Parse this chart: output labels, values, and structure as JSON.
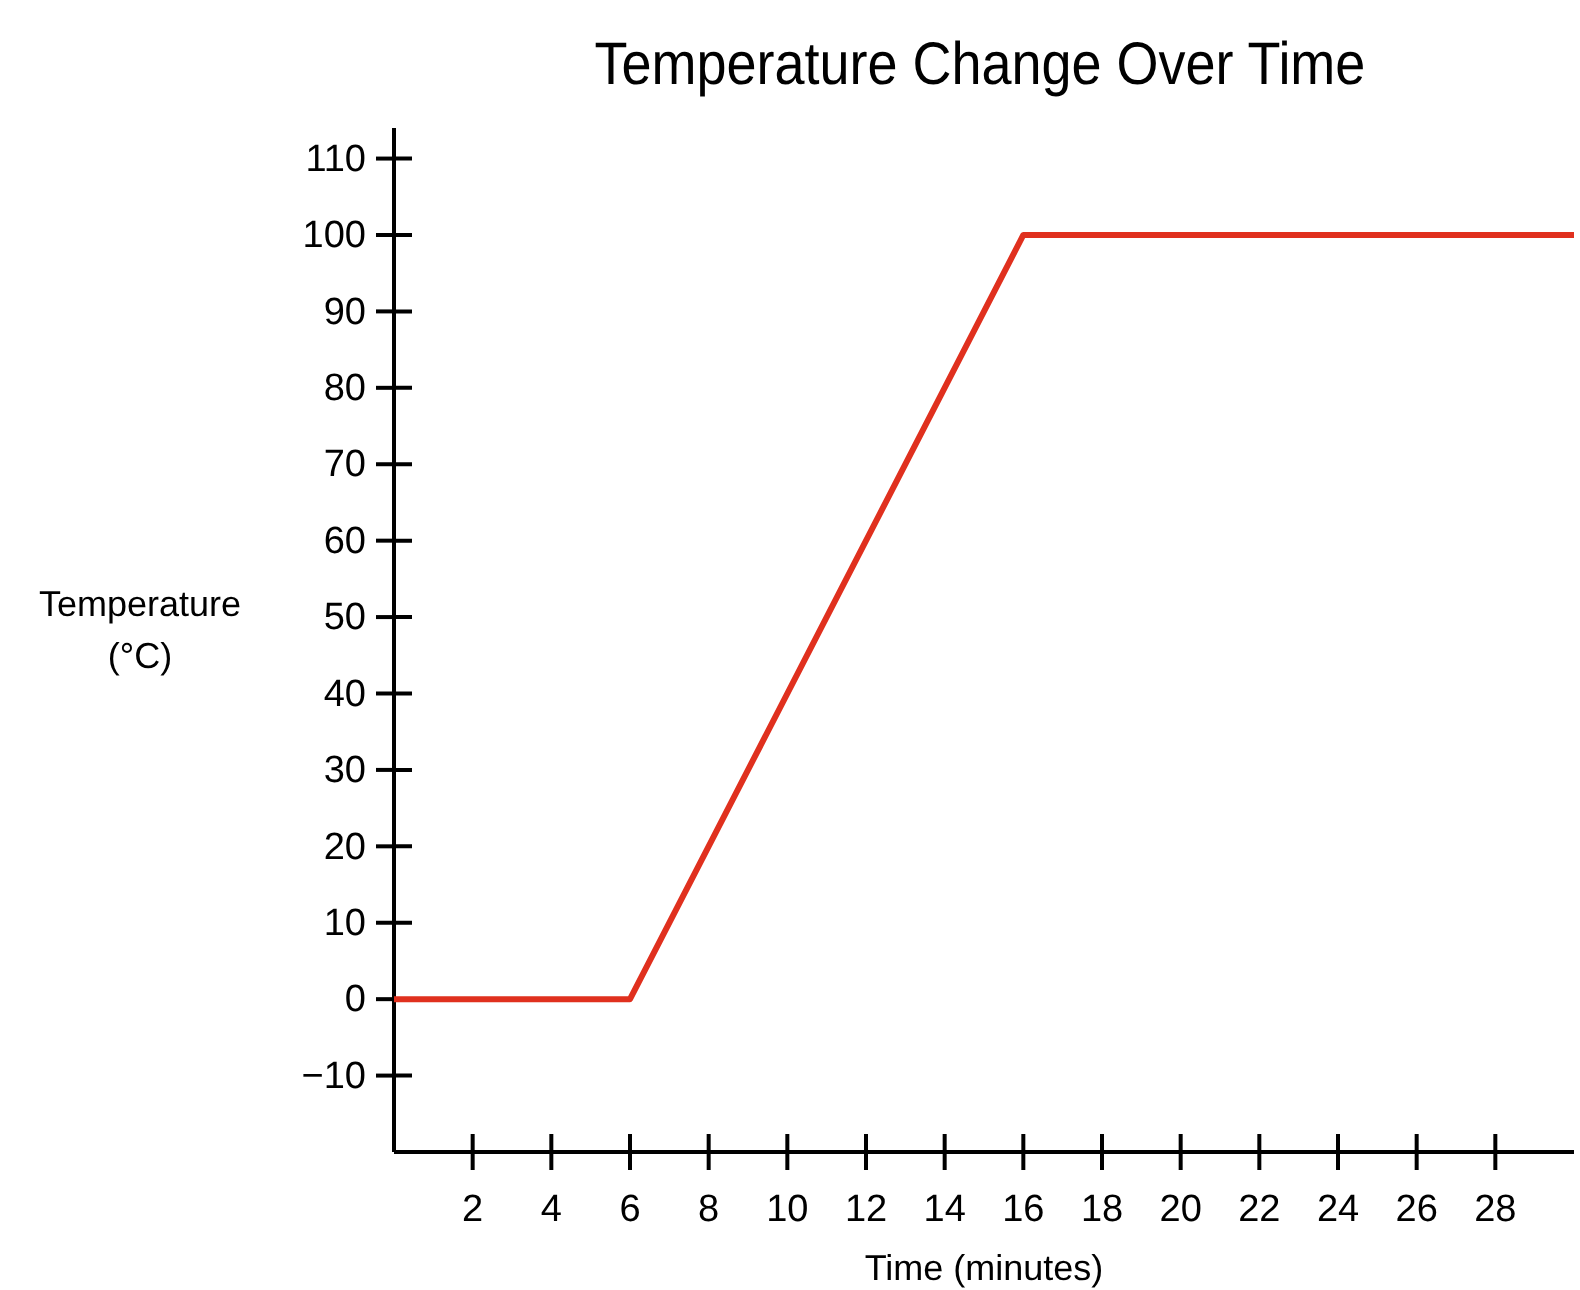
{
  "chart_data": {
    "type": "line",
    "title": "Temperature Change Over Time",
    "xlabel": "Time (minutes)",
    "ylabel": "Temperature\n(°C)",
    "x": [
      0,
      6,
      16,
      30
    ],
    "series": [
      {
        "color": "#e0301e",
        "values": [
          0,
          0,
          100,
          100
        ]
      }
    ],
    "xlim": [
      0,
      30
    ],
    "xticks": [
      2,
      4,
      6,
      8,
      10,
      12,
      14,
      16,
      18,
      20,
      22,
      24,
      26,
      28
    ],
    "ylim": [
      -20,
      114
    ],
    "yticks": [
      {
        "value": -10,
        "label": "−10"
      },
      0,
      10,
      20,
      30,
      40,
      50,
      60,
      70,
      80,
      90,
      100,
      110
    ],
    "grid": false,
    "marker": "none",
    "line_style": "solid"
  }
}
